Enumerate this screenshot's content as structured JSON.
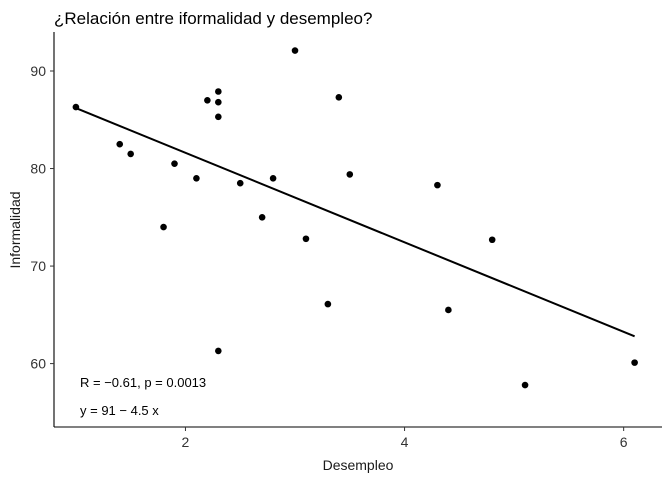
{
  "chart_data": {
    "type": "scatter",
    "title": "¿Relación entre iformalidad y desempleo?",
    "xlabel": "Desempleo",
    "ylabel": "Informalidad",
    "xlim": [
      0.8,
      6.35
    ],
    "ylim": [
      53.5,
      94
    ],
    "xticks": [
      2,
      4,
      6
    ],
    "yticks": [
      60,
      70,
      80,
      90
    ],
    "grid": false,
    "points": [
      {
        "x": 1.0,
        "y": 86.3
      },
      {
        "x": 1.4,
        "y": 82.5
      },
      {
        "x": 1.5,
        "y": 81.5
      },
      {
        "x": 1.8,
        "y": 74.0
      },
      {
        "x": 1.9,
        "y": 80.5
      },
      {
        "x": 2.1,
        "y": 79.0
      },
      {
        "x": 2.2,
        "y": 87.0
      },
      {
        "x": 2.3,
        "y": 85.3
      },
      {
        "x": 2.3,
        "y": 86.8
      },
      {
        "x": 2.3,
        "y": 87.9
      },
      {
        "x": 2.3,
        "y": 61.3
      },
      {
        "x": 2.5,
        "y": 78.5
      },
      {
        "x": 2.7,
        "y": 75.0
      },
      {
        "x": 2.8,
        "y": 79.0
      },
      {
        "x": 3.0,
        "y": 92.1
      },
      {
        "x": 3.1,
        "y": 72.8
      },
      {
        "x": 3.3,
        "y": 66.1
      },
      {
        "x": 3.4,
        "y": 87.3
      },
      {
        "x": 3.5,
        "y": 79.4
      },
      {
        "x": 4.3,
        "y": 78.3
      },
      {
        "x": 4.4,
        "y": 65.5
      },
      {
        "x": 4.8,
        "y": 72.7
      },
      {
        "x": 5.1,
        "y": 57.8
      },
      {
        "x": 6.1,
        "y": 60.1
      }
    ],
    "regression": {
      "x_start": 1.0,
      "x_end": 6.1,
      "y_start": 86.2,
      "y_end": 62.8
    },
    "annotations": {
      "stats": "R = −0.61, p = 0.0013",
      "equation": "y = 91 − 4.5 x"
    }
  }
}
